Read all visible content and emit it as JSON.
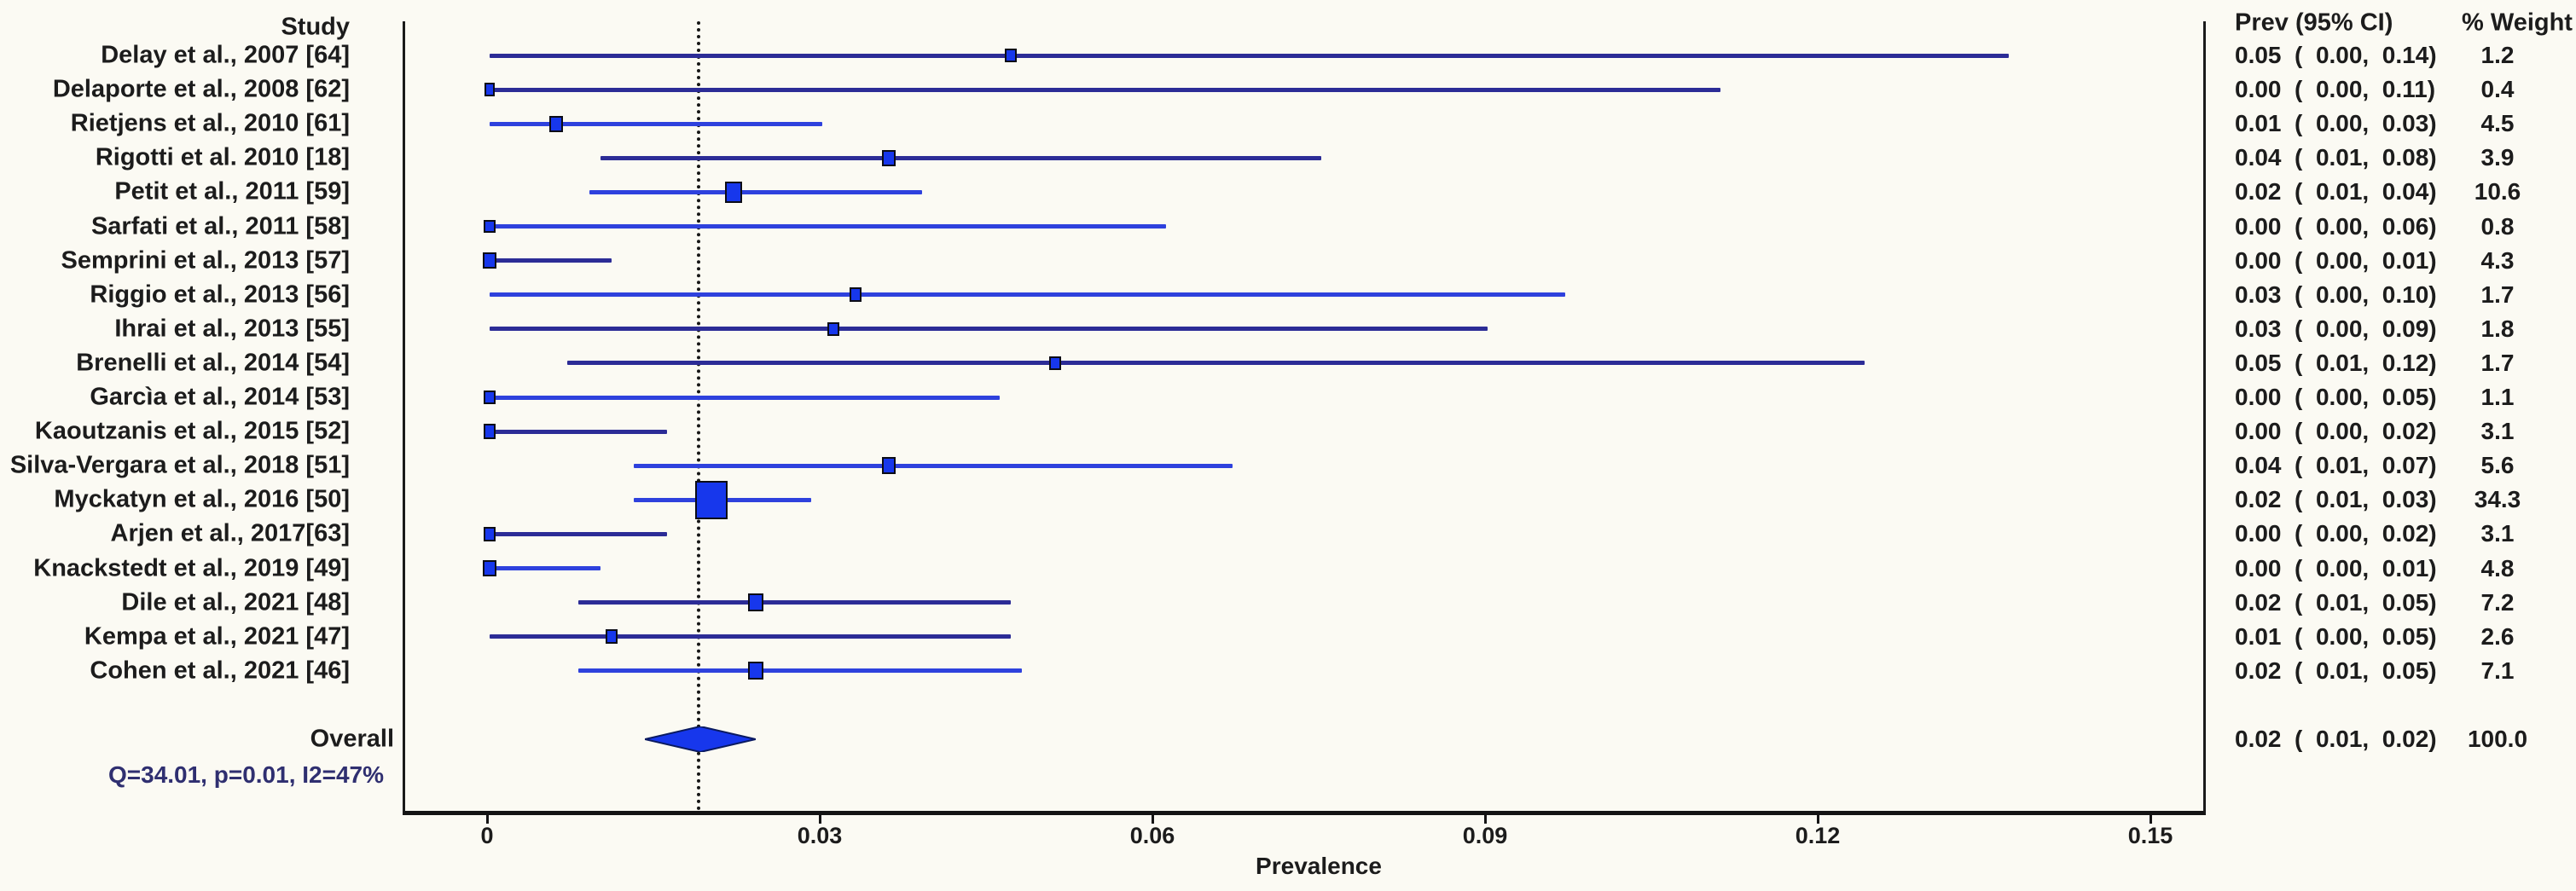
{
  "colors": {
    "background": "#fbfaf3",
    "text": "#1c1c1c",
    "line_dark": "#2c2c96",
    "line_bright": "#2e41dd",
    "marker_fill": "#1737ec",
    "marker_border": "#0c0c16",
    "diamond_fill": "#1737ec",
    "diamond_border": "#0a1a60",
    "axis": "#141414",
    "het_text": "#2f2f70"
  },
  "chart_data": {
    "type": "forest",
    "xlabel": "Prevalence",
    "columns": {
      "study": "Study",
      "prev_ci": "Prev (95% CI)",
      "weight": "% Weight"
    },
    "x_ticks": [
      {
        "v": 0.0,
        "label": "0"
      },
      {
        "v": 0.03,
        "label": "0.03"
      },
      {
        "v": 0.06,
        "label": "0.06"
      },
      {
        "v": 0.09,
        "label": "0.09"
      },
      {
        "v": 0.12,
        "label": "0.12"
      },
      {
        "v": 0.15,
        "label": "0.15"
      }
    ],
    "xlim": [
      -0.0076,
      0.1548
    ],
    "dashed_line_value": 0.0187,
    "studies": [
      {
        "label": "Delay et al., 2007 [64]",
        "prev": 0.047,
        "lo": 0.0,
        "hi": 0.137,
        "weight": 1.2,
        "prev_str": "0.05",
        "lo_str": "0.00",
        "hi_str": "0.14",
        "weight_str": "1.2",
        "shade": "dark"
      },
      {
        "label": "Delaporte et al., 2008 [62]",
        "prev": 0.0,
        "lo": 0.0,
        "hi": 0.111,
        "weight": 0.4,
        "prev_str": "0.00",
        "lo_str": "0.00",
        "hi_str": "0.11",
        "weight_str": "0.4",
        "shade": "dark"
      },
      {
        "label": "Rietjens et al., 2010 [61]",
        "prev": 0.006,
        "lo": 0.0,
        "hi": 0.03,
        "weight": 4.5,
        "prev_str": "0.01",
        "lo_str": "0.00",
        "hi_str": "0.03",
        "weight_str": "4.5",
        "shade": "bright"
      },
      {
        "label": "Rigotti et al. 2010 [18]",
        "prev": 0.036,
        "lo": 0.01,
        "hi": 0.075,
        "weight": 3.9,
        "prev_str": "0.04",
        "lo_str": "0.01",
        "hi_str": "0.08",
        "weight_str": "3.9",
        "shade": "dark"
      },
      {
        "label": "Petit et al., 2011 [59]",
        "prev": 0.022,
        "lo": 0.009,
        "hi": 0.039,
        "weight": 10.6,
        "prev_str": "0.02",
        "lo_str": "0.01",
        "hi_str": "0.04",
        "weight_str": "10.6",
        "shade": "bright"
      },
      {
        "label": "Sarfati et al., 2011 [58]",
        "prev": 0.0,
        "lo": 0.0,
        "hi": 0.061,
        "weight": 0.8,
        "prev_str": "0.00",
        "lo_str": "0.00",
        "hi_str": "0.06",
        "weight_str": "0.8",
        "shade": "bright"
      },
      {
        "label": "Semprini et al., 2013 [57]",
        "prev": 0.0,
        "lo": 0.0,
        "hi": 0.011,
        "weight": 4.3,
        "prev_str": "0.00",
        "lo_str": "0.00",
        "hi_str": "0.01",
        "weight_str": "4.3",
        "shade": "dark"
      },
      {
        "label": "Riggio et al., 2013 [56]",
        "prev": 0.033,
        "lo": 0.0,
        "hi": 0.097,
        "weight": 1.7,
        "prev_str": "0.03",
        "lo_str": "0.00",
        "hi_str": "0.10",
        "weight_str": "1.7",
        "shade": "bright"
      },
      {
        "label": "Ihrai et al., 2013 [55]",
        "prev": 0.031,
        "lo": 0.0,
        "hi": 0.09,
        "weight": 1.8,
        "prev_str": "0.03",
        "lo_str": "0.00",
        "hi_str": "0.09",
        "weight_str": "1.8",
        "shade": "dark"
      },
      {
        "label": "Brenelli et al., 2014 [54]",
        "prev": 0.051,
        "lo": 0.007,
        "hi": 0.124,
        "weight": 1.7,
        "prev_str": "0.05",
        "lo_str": "0.01",
        "hi_str": "0.12",
        "weight_str": "1.7",
        "shade": "dark"
      },
      {
        "label": "Garcìa et al., 2014 [53]",
        "prev": 0.0,
        "lo": 0.0,
        "hi": 0.046,
        "weight": 1.1,
        "prev_str": "0.00",
        "lo_str": "0.00",
        "hi_str": "0.05",
        "weight_str": "1.1",
        "shade": "bright"
      },
      {
        "label": "Kaoutzanis et al., 2015 [52]",
        "prev": 0.0,
        "lo": 0.0,
        "hi": 0.016,
        "weight": 3.1,
        "prev_str": "0.00",
        "lo_str": "0.00",
        "hi_str": "0.02",
        "weight_str": "3.1",
        "shade": "dark"
      },
      {
        "label": "Silva-Vergara et al., 2018 [51]",
        "prev": 0.036,
        "lo": 0.013,
        "hi": 0.067,
        "weight": 5.6,
        "prev_str": "0.04",
        "lo_str": "0.01",
        "hi_str": "0.07",
        "weight_str": "5.6",
        "shade": "bright"
      },
      {
        "label": "Myckatyn et al., 2016 [50]",
        "prev": 0.02,
        "lo": 0.013,
        "hi": 0.029,
        "weight": 34.3,
        "prev_str": "0.02",
        "lo_str": "0.01",
        "hi_str": "0.03",
        "weight_str": "34.3",
        "shade": "bright"
      },
      {
        "label": "Arjen et al., 2017[63]",
        "prev": 0.0,
        "lo": 0.0,
        "hi": 0.016,
        "weight": 3.1,
        "prev_str": "0.00",
        "lo_str": "0.00",
        "hi_str": "0.02",
        "weight_str": "3.1",
        "shade": "dark"
      },
      {
        "label": "Knackstedt et al., 2019 [49]",
        "prev": 0.0,
        "lo": 0.0,
        "hi": 0.01,
        "weight": 4.8,
        "prev_str": "0.00",
        "lo_str": "0.00",
        "hi_str": "0.01",
        "weight_str": "4.8",
        "shade": "bright"
      },
      {
        "label": "Dile et al., 2021 [48]",
        "prev": 0.024,
        "lo": 0.008,
        "hi": 0.047,
        "weight": 7.2,
        "prev_str": "0.02",
        "lo_str": "0.01",
        "hi_str": "0.05",
        "weight_str": "7.2",
        "shade": "dark"
      },
      {
        "label": "Kempa et al., 2021 [47]",
        "prev": 0.011,
        "lo": 0.0,
        "hi": 0.047,
        "weight": 2.6,
        "prev_str": "0.01",
        "lo_str": "0.00",
        "hi_str": "0.05",
        "weight_str": "2.6",
        "shade": "dark"
      },
      {
        "label": "Cohen et al., 2021 [46]",
        "prev": 0.024,
        "lo": 0.008,
        "hi": 0.048,
        "weight": 7.1,
        "prev_str": "0.02",
        "lo_str": "0.01",
        "hi_str": "0.05",
        "weight_str": "7.1",
        "shade": "bright"
      }
    ],
    "overall": {
      "label": "Overall",
      "heterogeneity": "Q=34.01, p=0.01, I2=47%",
      "prev": 0.019,
      "lo": 0.014,
      "hi": 0.024,
      "prev_str": "0.02",
      "lo_str": "0.01",
      "hi_str": "0.02",
      "weight_str": "100.0"
    }
  }
}
